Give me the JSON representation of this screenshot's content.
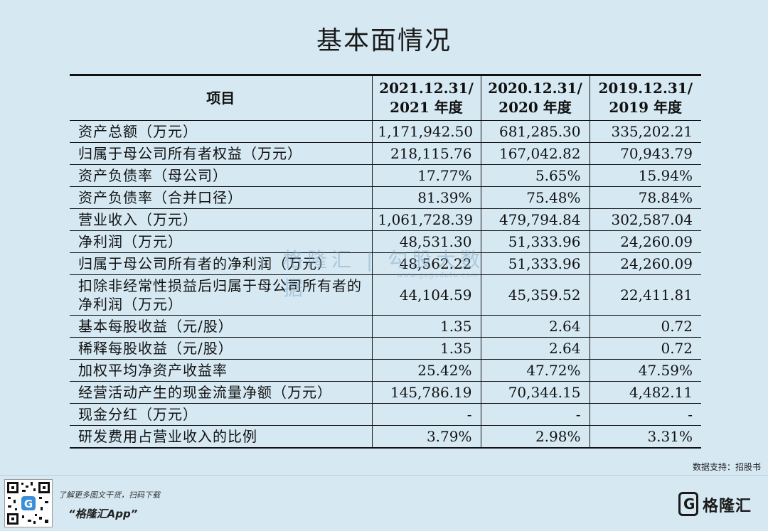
{
  "title": "基本面情况",
  "table": {
    "headers": [
      {
        "line1": "项目",
        "line2": ""
      },
      {
        "line1": "2021.12.31/",
        "line2": "2021 年度"
      },
      {
        "line1": "2020.12.31/",
        "line2": "2020 年度"
      },
      {
        "line1": "2019.12.31/",
        "line2": "2019 年度"
      }
    ],
    "rows": [
      {
        "item": "资产总额（万元）",
        "v2021": "1,171,942.50",
        "v2020": "681,285.30",
        "v2019": "335,202.21"
      },
      {
        "item": "归属于母公司所有者权益（万元）",
        "v2021": "218,115.76",
        "v2020": "167,042.82",
        "v2019": "70,943.79"
      },
      {
        "item": "资产负债率（母公司）",
        "v2021": "17.77%",
        "v2020": "5.65%",
        "v2019": "15.94%"
      },
      {
        "item": "资产负债率（合并口径）",
        "v2021": "81.39%",
        "v2020": "75.48%",
        "v2019": "78.84%"
      },
      {
        "item": "营业收入（万元）",
        "v2021": "1,061,728.39",
        "v2020": "479,794.84",
        "v2019": "302,587.04"
      },
      {
        "item": "净利润（万元）",
        "v2021": "48,531.30",
        "v2020": "51,333.96",
        "v2019": "24,260.09"
      },
      {
        "item": "归属于母公司所有者的净利润（万元）",
        "v2021": "48,562.22",
        "v2020": "51,333.96",
        "v2019": "24,260.09"
      },
      {
        "item": "扣除非经常性损益后归属于母公司所有者的净利润（万元）",
        "v2021": "44,104.59",
        "v2020": "45,359.52",
        "v2019": "22,411.81"
      },
      {
        "item": "基本每股收益（元/股）",
        "v2021": "1.35",
        "v2020": "2.64",
        "v2019": "0.72"
      },
      {
        "item": "稀释每股收益（元/股）",
        "v2021": "1.35",
        "v2020": "2.64",
        "v2019": "0.72"
      },
      {
        "item": "加权平均净资产收益率",
        "v2021": "25.42%",
        "v2020": "47.72%",
        "v2019": "47.59%"
      },
      {
        "item": "经营活动产生的现金流量净额（万元）",
        "v2021": "145,786.19",
        "v2020": "70,344.15",
        "v2019": "4,482.11"
      },
      {
        "item": "现金分红（万元）",
        "v2021": "-",
        "v2020": "-",
        "v2019": "-"
      },
      {
        "item": "研发费用占营业收入的比例",
        "v2021": "3.79%",
        "v2020": "2.98%",
        "v2019": "3.31%"
      }
    ]
  },
  "watermark": {
    "text": "格隆汇 | 勾股大数据",
    "url": "www.gogudata.com"
  },
  "source": "数据支持：招股书",
  "footer": {
    "promo_line1": "了解更多图文干货，扫码下载",
    "promo_line2": "“格隆汇App”",
    "brand_name": "格隆汇",
    "logo_letter": "G",
    "qr_icon": "qr-code-icon"
  }
}
